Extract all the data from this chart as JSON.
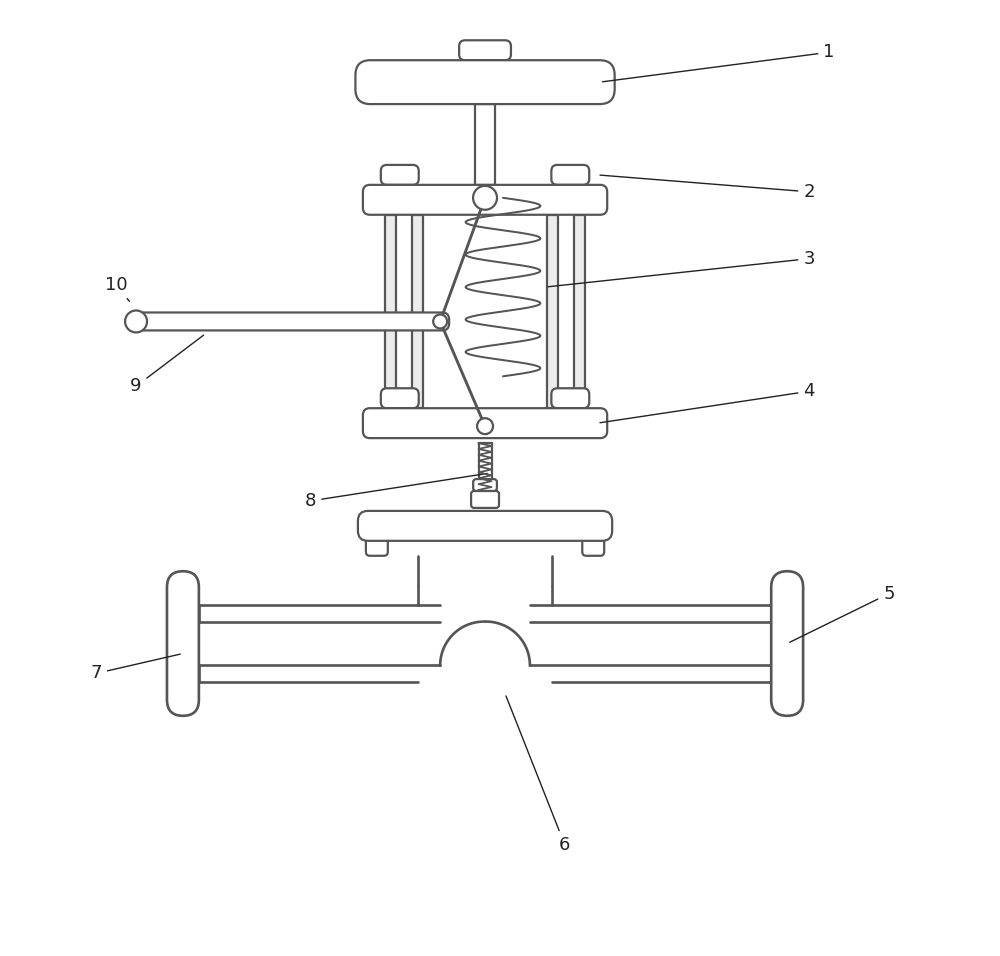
{
  "bg_color": "#ffffff",
  "line_color": "#555555",
  "line_width": 1.6,
  "label_color": "#222222",
  "label_fs": 13
}
